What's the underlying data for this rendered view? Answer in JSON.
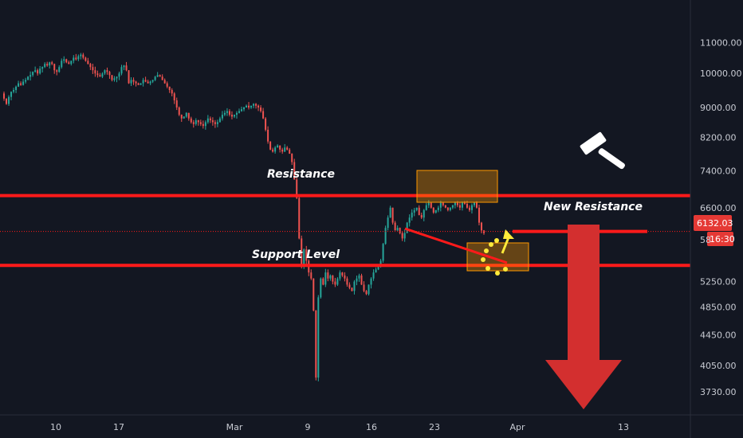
{
  "chart_data": {
    "type": "candlestick",
    "y_scale": "log",
    "ylim": [
      3500,
      12400
    ],
    "y_ticks": [
      "11000.00",
      "10000.00",
      "9000.00",
      "8200.00",
      "7400.00",
      "6600.00",
      "5250.00",
      "4850.00",
      "4450.00",
      "4050.00",
      "3730.00"
    ],
    "x_ticks": [
      "10",
      "17",
      "Mar",
      "9",
      "16",
      "23",
      "Apr",
      "13"
    ],
    "current_price": "6132.03",
    "countdown": "16:30",
    "price_axis_partial": "58",
    "series": [
      {
        "values": [
          9400,
          9250,
          9100,
          9300,
          9450,
          9500,
          9600,
          9700,
          9650,
          9750,
          9800,
          9900,
          9950,
          10050,
          10100,
          10000,
          10150,
          10200,
          10300,
          10250,
          10350,
          10300,
          10100,
          10050,
          10200,
          10400,
          10450,
          10350,
          10300,
          10400,
          10500,
          10450,
          10550,
          10600,
          10500,
          10400,
          10300,
          10200,
          10100,
          10000,
          9950,
          9900,
          10000,
          10100,
          10050,
          9950,
          9800,
          9850,
          9900,
          10000,
          10200,
          10250,
          10100,
          9700,
          9800,
          9750,
          9700,
          9650,
          9700,
          9800,
          9750,
          9700,
          9750,
          9800,
          9900,
          9950,
          9900,
          9800,
          9700,
          9600,
          9500,
          9400,
          9200,
          9000,
          8800,
          8700,
          8750,
          8850,
          8700,
          8600,
          8550,
          8650,
          8600,
          8550,
          8500,
          8600,
          8700,
          8650,
          8600,
          8550,
          8600,
          8700,
          8800,
          8850,
          8900,
          8800,
          8750,
          8800,
          8850,
          8900,
          8950,
          9000,
          9050,
          9000,
          9050,
          9100,
          9050,
          9000,
          8900,
          8700,
          8400,
          8100,
          7900,
          7850,
          7950,
          8000,
          7900,
          7850,
          7950,
          7900,
          7800,
          7600,
          7200,
          6800,
          6000,
          5500,
          5800,
          5600,
          5400,
          5300,
          4800,
          3900,
          5000,
          5300,
          5200,
          5400,
          5300,
          5350,
          5250,
          5200,
          5300,
          5400,
          5350,
          5300,
          5200,
          5150,
          5100,
          5250,
          5300,
          5350,
          5200,
          5100,
          5050,
          5200,
          5300,
          5400,
          5450,
          5500,
          5600,
          5900,
          6200,
          6400,
          6600,
          6300,
          6150,
          6200,
          6100,
          6000,
          6100,
          6300,
          6400,
          6500,
          6550,
          6600,
          6450,
          6400,
          6550,
          6650,
          6700,
          6600,
          6500,
          6550,
          6600,
          6700,
          6650,
          6600,
          6550,
          6600,
          6650,
          6700,
          6650,
          6600,
          6700,
          6680,
          6600,
          6550,
          6650,
          6700,
          6600,
          6300,
          6150,
          6100
        ]
      }
    ],
    "annotations": [
      {
        "label": "Resistance"
      },
      {
        "label": "Support Level"
      },
      {
        "label": "New Resistance"
      }
    ],
    "lines": {
      "resistance": 6850,
      "support": 5520,
      "new_resistance": 6132
    },
    "colors": {
      "up": "#26a69a",
      "down": "#ef5350",
      "line": "#ff1a1a",
      "zone": "#ff9800",
      "arrow": "#d32f2f",
      "yellow": "#ffeb3b",
      "bg": "#131722",
      "axis_text": "#c8cbd3"
    }
  }
}
